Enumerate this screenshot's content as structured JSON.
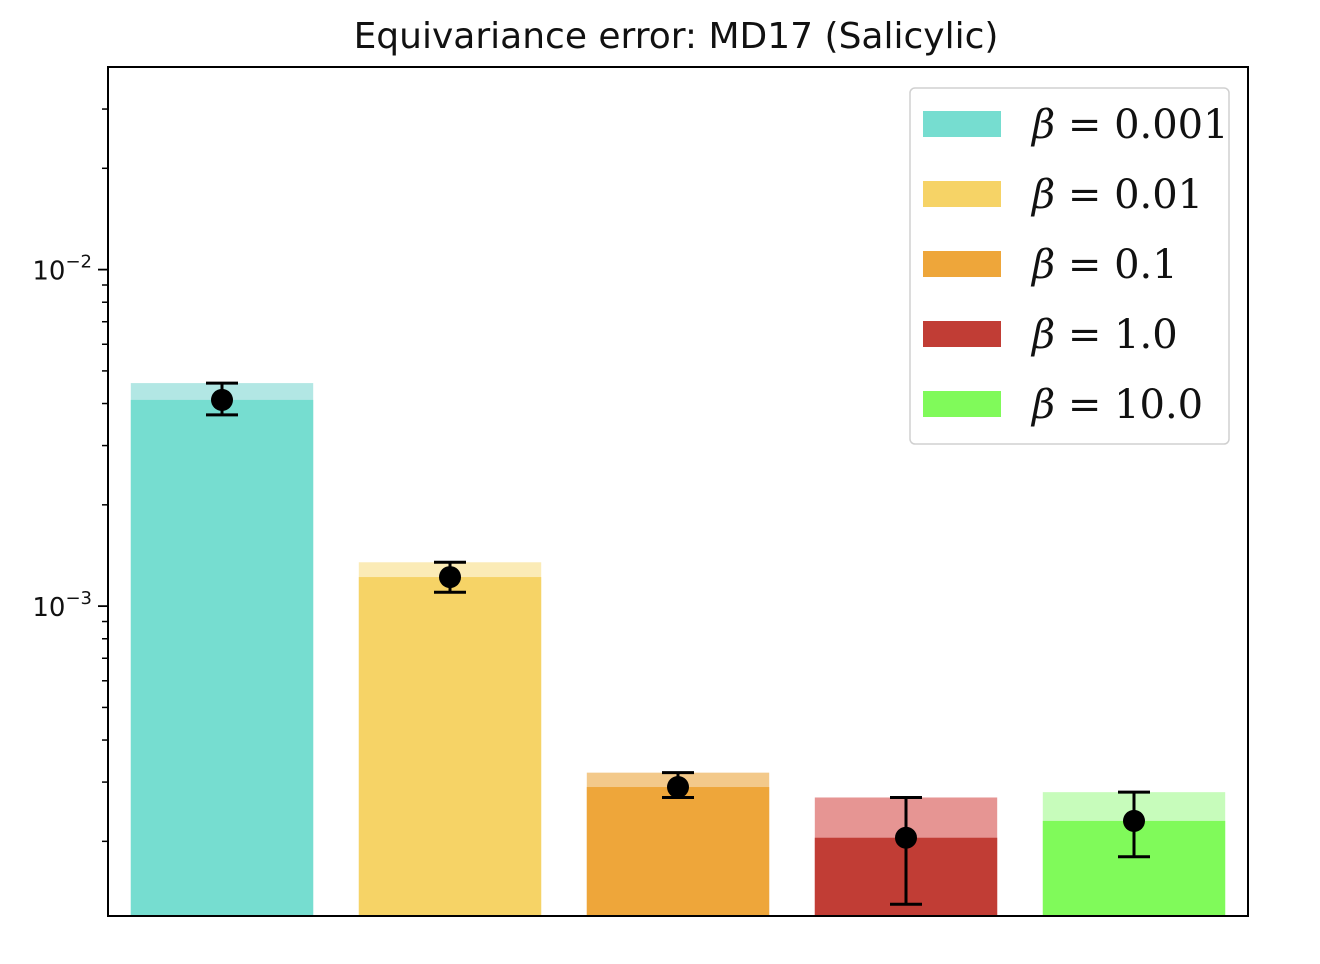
{
  "chart_data": {
    "type": "bar",
    "title": "Equivariance error: MD17 (Salicylic)",
    "xlabel": "",
    "ylabel": "",
    "yscale": "log",
    "ylim": [
      0.00012,
      0.04
    ],
    "y_major_ticks": [
      {
        "value": 0.01,
        "base": "10",
        "exp": "−2"
      },
      {
        "value": 0.001,
        "base": "10",
        "exp": "−3"
      }
    ],
    "y_minor_ticks": [
      0.0002,
      0.0003,
      0.0004,
      0.0005,
      0.0006,
      0.0007,
      0.0008,
      0.0009,
      0.002,
      0.003,
      0.004,
      0.005,
      0.006,
      0.007,
      0.008,
      0.009,
      0.02,
      0.03
    ],
    "categories": [
      "β = 0.001",
      "β = 0.01",
      "β = 0.1",
      "β = 1.0",
      "β = 10.0"
    ],
    "legend_position": "upper right",
    "series": [
      {
        "name": "β = 0.001",
        "beta": "0.001",
        "value": 0.0041,
        "upper_bar": 0.0046,
        "err_low": 0.0037,
        "err_high": 0.0046,
        "color": "#76ddd0",
        "light_color": "#b2e7e4"
      },
      {
        "name": "β = 0.01",
        "beta": "0.01",
        "value": 0.00122,
        "upper_bar": 0.00135,
        "err_low": 0.0011,
        "err_high": 0.00135,
        "color": "#f6d366",
        "light_color": "#fbebb6"
      },
      {
        "name": "β = 0.1",
        "beta": "0.1",
        "value": 0.00029,
        "upper_bar": 0.00032,
        "err_low": 0.00027,
        "err_high": 0.00032,
        "color": "#eea63a",
        "light_color": "#f3c98a"
      },
      {
        "name": "β = 1.0",
        "beta": "1.0",
        "value": 0.000205,
        "upper_bar": 0.00027,
        "err_low": 0.00013,
        "err_high": 0.00027,
        "color": "#c13d35",
        "light_color": "#e69593"
      },
      {
        "name": "β = 10.0",
        "beta": "10.0",
        "value": 0.00023,
        "upper_bar": 0.00028,
        "err_low": 0.00018,
        "err_high": 0.00028,
        "color": "#80fa5a",
        "light_color": "#c7fcbb"
      }
    ]
  }
}
